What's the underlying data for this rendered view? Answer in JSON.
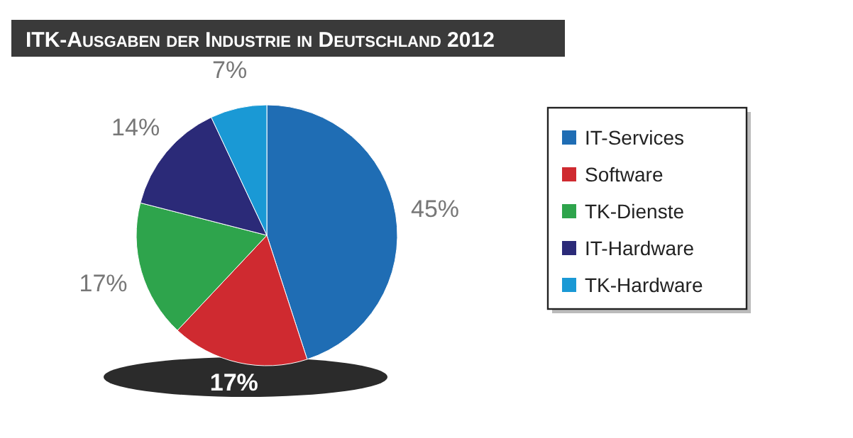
{
  "chart_data": {
    "type": "pie",
    "title": "ITK-Ausgaben der Industrie in Deutschland 2012",
    "categories": [
      "IT-Services",
      "Software",
      "TK-Dienste",
      "IT-Hardware",
      "TK-Hardware"
    ],
    "values": [
      45,
      17,
      17,
      14,
      7
    ],
    "colors": [
      "#1f6db4",
      "#cf2a30",
      "#2ea44c",
      "#2b2a78",
      "#1a99d5"
    ],
    "value_labels": [
      "45%",
      "17%",
      "17%",
      "14%",
      "7%"
    ],
    "legend": "right"
  }
}
